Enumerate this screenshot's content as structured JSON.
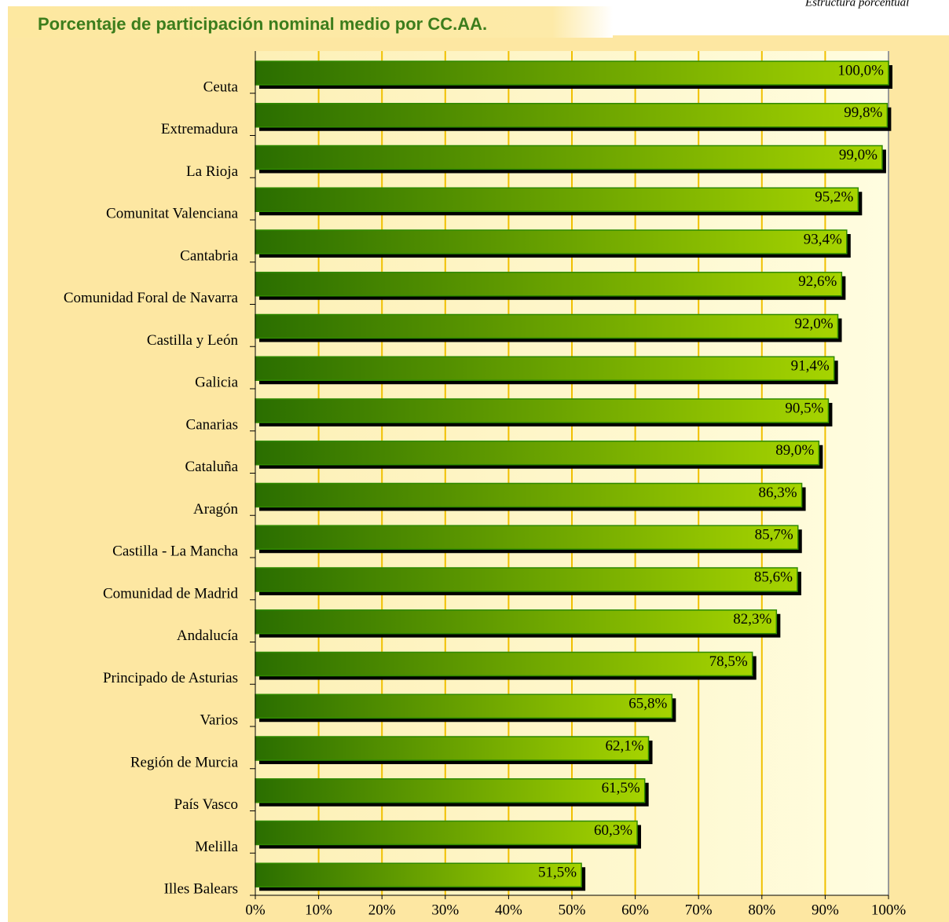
{
  "chart_data": {
    "type": "barh",
    "title": "Porcentaje de participación nominal medio por CC.AA.",
    "subtitle": "Estructura porcentual",
    "categories": [
      "Ceuta",
      "Extremadura",
      "La Rioja",
      "Comunitat Valenciana",
      "Cantabria",
      "Comunidad Foral de Navarra",
      "Castilla y León",
      "Galicia",
      "Canarias",
      "Cataluña",
      "Aragón",
      "Castilla - La Mancha",
      "Comunidad de Madrid",
      "Andalucía",
      "Principado de Asturias",
      "Varios",
      "Región de Murcia",
      "País Vasco",
      "Melilla",
      "Illes Balears"
    ],
    "values": [
      100,
      99.8,
      99,
      95.2,
      93.4,
      92.6,
      92,
      91.4,
      90.5,
      89,
      86.3,
      85.7,
      85.6,
      82.3,
      78.5,
      65.8,
      62.1,
      61.5,
      60.3,
      51.5
    ],
    "value_labels": [
      "100,0%",
      "99,8%",
      "99,0%",
      "95,2%",
      "93,4%",
      "92,6%",
      "92,0%",
      "91,4%",
      "90,5%",
      "89,0%",
      "86,3%",
      "85,7%",
      "85,6%",
      "82,3%",
      "78,5%",
      "65,8%",
      "62,1%",
      "61,5%",
      "60,3%",
      "51,5%"
    ],
    "color": "#99cc00",
    "xlim": [
      0,
      100
    ],
    "xticks": [
      {
        "value": 0,
        "label": "0%"
      },
      {
        "value": 10,
        "label": "10%"
      },
      {
        "value": 20,
        "label": "20%"
      },
      {
        "value": 30,
        "label": "30%"
      },
      {
        "value": 40,
        "label": "40%"
      },
      {
        "value": 50,
        "label": "50%"
      },
      {
        "value": 60,
        "label": "60%"
      },
      {
        "value": 70,
        "label": "70%"
      },
      {
        "value": 80,
        "label": "80%"
      },
      {
        "value": 90,
        "label": "90%"
      },
      {
        "value": 100,
        "label": "100%"
      }
    ],
    "grid": true
  }
}
